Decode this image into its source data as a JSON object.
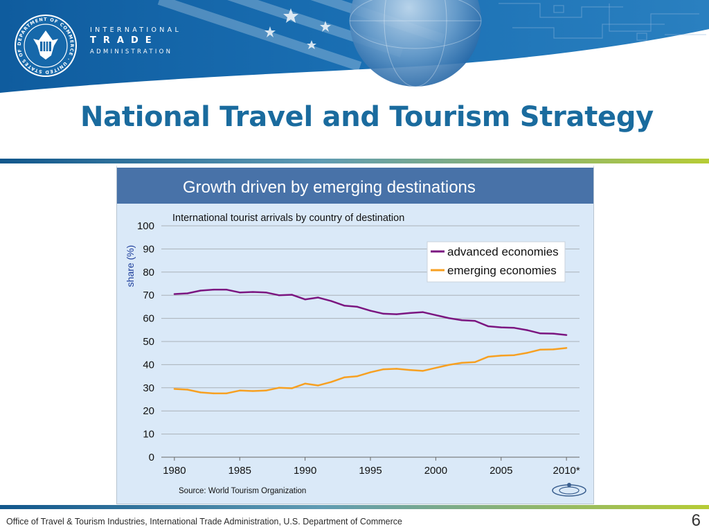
{
  "header": {
    "seal_text": "DEPARTMENT OF COMMERCE · UNITED STATES OF AMERICA",
    "org_line1": "INTERNATIONAL",
    "org_line2": "TRADE",
    "org_line3": "ADMINISTRATION"
  },
  "slide": {
    "title": "National Travel and Tourism Strategy",
    "page_number": "6"
  },
  "footer": {
    "text": "Office of Travel & Tourism Industries, International Trade Administration, U.S. Department of Commerce"
  },
  "colors": {
    "header_blue": "#1565a6",
    "title_blue": "#1a6b9e",
    "chart_background": "#dae9f8",
    "chart_header": "#4872a8",
    "advanced_series": "#7b1680",
    "emerging_series": "#f7a021"
  },
  "chart_data": {
    "type": "line",
    "header": "Growth driven by emerging destinations",
    "title": "International tourist arrivals by country of destination",
    "ylabel": "share (%)",
    "xlabel": "",
    "source": "Source: World Tourism Organization",
    "ylim": [
      0,
      100
    ],
    "yticks": [
      0,
      10,
      20,
      30,
      40,
      50,
      60,
      70,
      80,
      90,
      100
    ],
    "xlim": [
      1980,
      2010
    ],
    "xtick_labels": [
      "1980",
      "1985",
      "1990",
      "1995",
      "2000",
      "2005",
      "2010*"
    ],
    "grid": true,
    "legend_position": "top-right",
    "x": [
      1980,
      1981,
      1982,
      1983,
      1984,
      1985,
      1986,
      1987,
      1988,
      1989,
      1990,
      1991,
      1992,
      1993,
      1994,
      1995,
      1996,
      1997,
      1998,
      1999,
      2000,
      2001,
      2002,
      2003,
      2004,
      2005,
      2006,
      2007,
      2008,
      2009,
      2010
    ],
    "series": [
      {
        "name": "advanced economies",
        "color": "#7b1680",
        "values": [
          70.5,
          70.8,
          72.0,
          72.4,
          72.4,
          71.2,
          71.4,
          71.2,
          70.0,
          70.2,
          68.2,
          69.0,
          67.5,
          65.5,
          65.0,
          63.3,
          62.0,
          61.8,
          62.3,
          62.7,
          61.4,
          60.1,
          59.2,
          58.9,
          56.6,
          56.1,
          55.9,
          54.9,
          53.5,
          53.4,
          52.8
        ]
      },
      {
        "name": "emerging economies",
        "color": "#f7a021",
        "values": [
          29.5,
          29.2,
          28.0,
          27.6,
          27.6,
          28.8,
          28.6,
          28.8,
          30.0,
          29.8,
          31.8,
          31.0,
          32.5,
          34.5,
          35.0,
          36.7,
          38.0,
          38.2,
          37.7,
          37.3,
          38.6,
          39.9,
          40.8,
          41.1,
          43.4,
          43.9,
          44.1,
          45.1,
          46.5,
          46.6,
          47.2
        ]
      }
    ]
  }
}
